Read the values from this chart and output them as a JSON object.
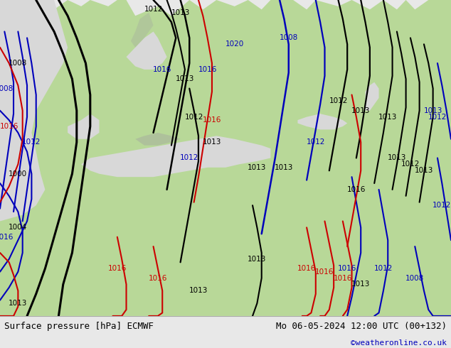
{
  "title_left": "Surface pressure [hPa] ECMWF",
  "title_right": "Mo 06-05-2024 12:00 UTC (00+132)",
  "copyright": "©weatheronline.co.uk",
  "land_color": "#b8d898",
  "sea_color": "#d8d8d8",
  "mountain_color": "#a0a0a0",
  "footer_bg": "#e8e8e8",
  "text_black": "#000000",
  "text_blue": "#0000bb",
  "text_red": "#cc0000",
  "col_black": "#000000",
  "col_blue": "#0000bb",
  "col_red": "#cc0000",
  "footer_fs": 9,
  "label_fs": 7.5,
  "isobar_lw": 1.6
}
